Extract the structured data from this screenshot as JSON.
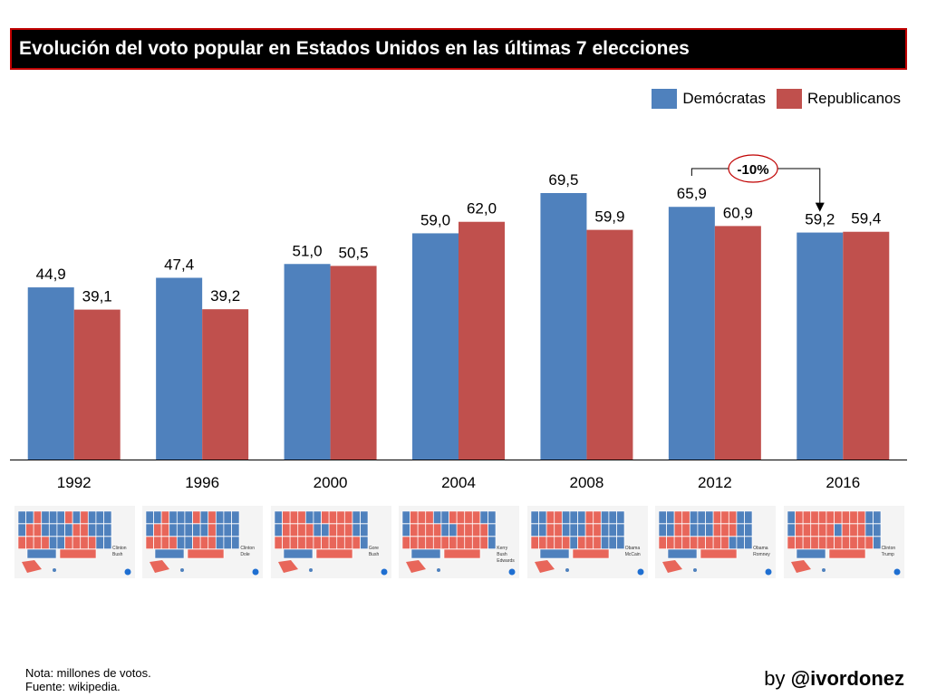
{
  "title": "Evolución del voto popular en Estados Unidos en las últimas 7 elecciones",
  "colors": {
    "dem": "#4f81bd",
    "rep": "#c0504d",
    "accent": "#c00000"
  },
  "legend": {
    "dem": "Demócratas",
    "rep": "Republicanos"
  },
  "chart_data": {
    "type": "bar",
    "categories": [
      "1992",
      "1996",
      "2000",
      "2004",
      "2008",
      "2012",
      "2016"
    ],
    "series": [
      {
        "name": "Demócratas",
        "values": [
          44.9,
          47.4,
          51.0,
          59.0,
          69.5,
          65.9,
          59.2
        ],
        "labels": [
          "44,9",
          "47,4",
          "51,0",
          "59,0",
          "69,5",
          "65,9",
          "59,2"
        ]
      },
      {
        "name": "Republicanos",
        "values": [
          39.1,
          39.2,
          50.5,
          62.0,
          59.9,
          60.9,
          59.4
        ],
        "labels": [
          "39,1",
          "39,2",
          "50,5",
          "62,0",
          "59,9",
          "60,9",
          "59,4"
        ]
      }
    ],
    "ylim": [
      0,
      70
    ],
    "annotation": {
      "text": "-10%",
      "from": "2012",
      "to": "2016"
    }
  },
  "maps": [
    {
      "year": "1992",
      "legend": [
        "Clinton",
        "Bush"
      ]
    },
    {
      "year": "1996",
      "legend": [
        "Clinton",
        "Dole"
      ]
    },
    {
      "year": "2000",
      "legend": [
        "Gore",
        "Bush"
      ]
    },
    {
      "year": "2004",
      "legend": [
        "Kerry",
        "Bush",
        "Edwards"
      ]
    },
    {
      "year": "2008",
      "legend": [
        "Obama",
        "McCain"
      ]
    },
    {
      "year": "2012",
      "legend": [
        "Obama",
        "Romney"
      ]
    },
    {
      "year": "2016",
      "legend": [
        "Clinton",
        "Trump"
      ]
    }
  ],
  "note": {
    "line1": "Nota: millones de votos.",
    "line2": "Fuente: wikipedia."
  },
  "credit": {
    "prefix": "by",
    "handle": "@ivordonez"
  }
}
